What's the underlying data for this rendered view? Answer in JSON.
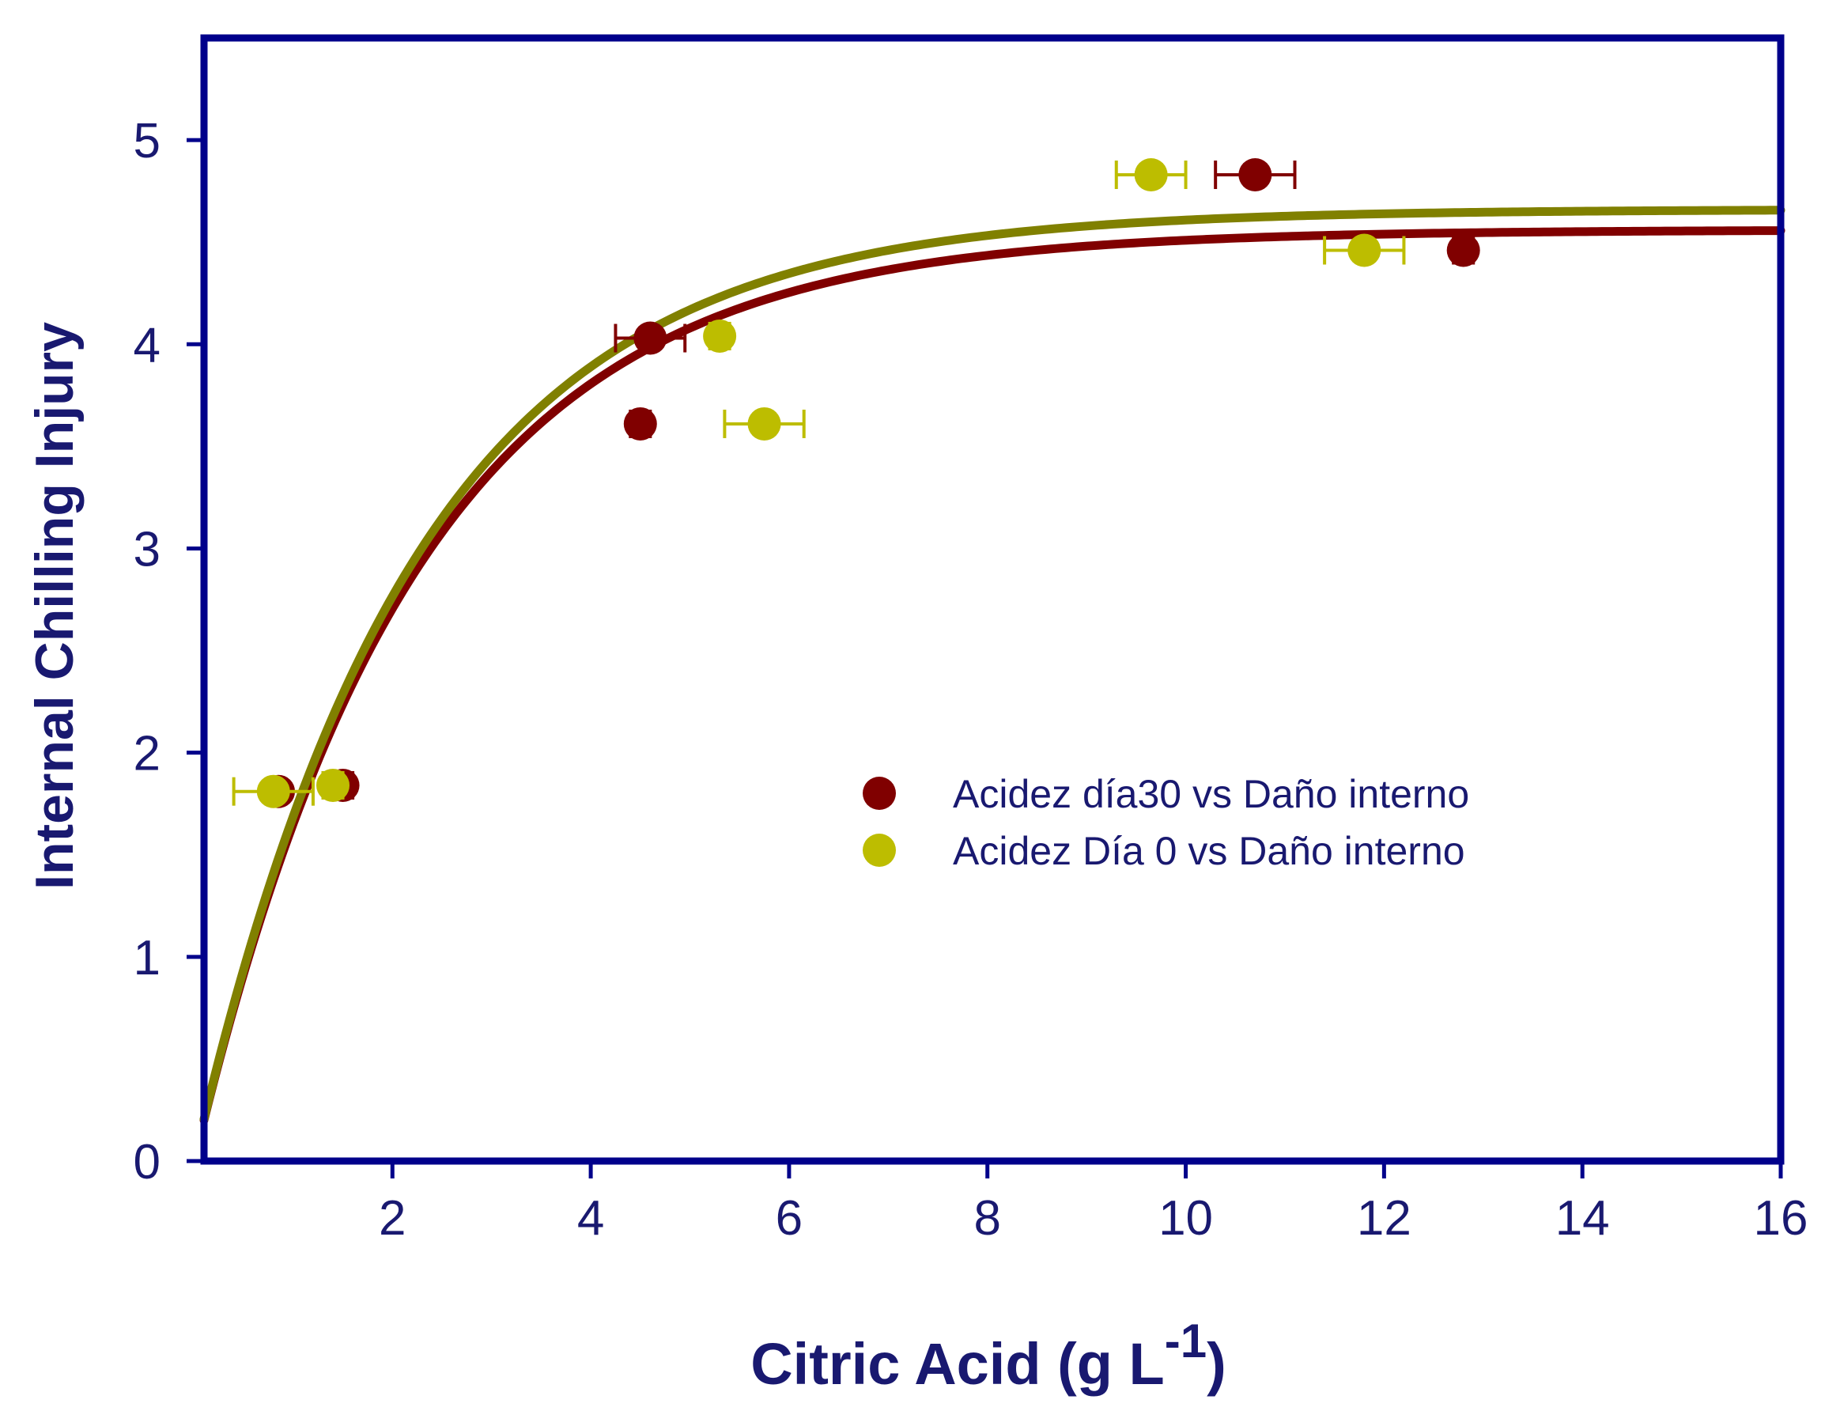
{
  "chart_data": {
    "type": "scatter",
    "xlabel": "Citric Acid (g L",
    "xlabel_superscript": "-1",
    "xlabel_suffix": ")",
    "ylabel": "Internal Chilling Injury",
    "xlim": [
      0.1,
      16
    ],
    "ylim": [
      0,
      5.5
    ],
    "xticks": [
      2,
      4,
      6,
      8,
      10,
      12,
      14,
      16
    ],
    "yticks": [
      0,
      1,
      2,
      3,
      4,
      5
    ],
    "grid": false,
    "legend_position": "center-right",
    "axis_color": "#00008b",
    "text_color": "#191970",
    "series": [
      {
        "name": "Acidez día30 vs Daño interno",
        "color": "#800000",
        "points": [
          {
            "x": 0.85,
            "y": 1.81,
            "xerr": 0.05
          },
          {
            "x": 1.5,
            "y": 1.84,
            "xerr": 0.1
          },
          {
            "x": 4.5,
            "y": 3.61,
            "xerr": 0.1
          },
          {
            "x": 4.6,
            "y": 4.03,
            "xerr": 0.35
          },
          {
            "x": 10.7,
            "y": 4.83,
            "xerr": 0.4
          },
          {
            "x": 12.8,
            "y": 4.46,
            "xerr": 0.1
          }
        ],
        "fit": {
          "model": "exponential rise to max",
          "a": 4.56,
          "b": 0.45,
          "c": 0.0
        }
      },
      {
        "name": "Acidez Día 0 vs Daño interno",
        "color": "#bdbd00",
        "points": [
          {
            "x": 0.8,
            "y": 1.81,
            "xerr": 0.4
          },
          {
            "x": 1.4,
            "y": 1.84,
            "xerr": 0.1
          },
          {
            "x": 5.3,
            "y": 4.04,
            "xerr": 0.1
          },
          {
            "x": 5.75,
            "y": 3.61,
            "xerr": 0.4
          },
          {
            "x": 9.65,
            "y": 4.83,
            "xerr": 0.35
          },
          {
            "x": 11.8,
            "y": 4.46,
            "xerr": 0.4
          }
        ],
        "fit": {
          "model": "exponential rise to max",
          "a": 4.66,
          "b": 0.45,
          "c": 0.0
        },
        "fit_color": "#808000"
      }
    ]
  }
}
